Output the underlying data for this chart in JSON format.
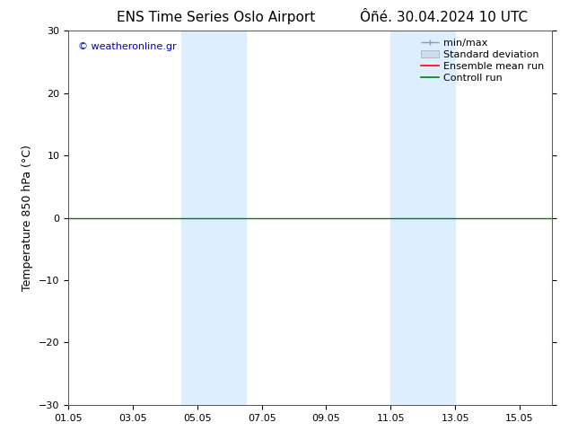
{
  "title_left": "ENS Time Series Oslo Airport",
  "title_right": "Ôñé. 30.04.2024 10 UTC",
  "ylabel": "Temperature 850 hPa (°C)",
  "ylim": [
    -30,
    30
  ],
  "yticks": [
    -30,
    -20,
    -10,
    0,
    10,
    20,
    30
  ],
  "xlim": [
    0,
    15
  ],
  "xtick_labels": [
    "01.05",
    "03.05",
    "05.05",
    "07.05",
    "09.05",
    "11.05",
    "13.05",
    "15.05"
  ],
  "xtick_positions": [
    0,
    2,
    4,
    6,
    8,
    10,
    12,
    14
  ],
  "watermark": "© weatheronline.gr",
  "watermark_color": "#0000bb",
  "bg_color": "#ffffff",
  "plot_bg_color": "#ffffff",
  "shaded_regions": [
    {
      "x_start": 3.5,
      "x_end": 5.5,
      "color": "#ddeeff"
    },
    {
      "x_start": 10.0,
      "x_end": 12.0,
      "color": "#ddeeff"
    }
  ],
  "control_run_y": 0,
  "control_run_color": "#008000",
  "ensemble_mean_color": "#ff0000",
  "minmax_color": "#999999",
  "stddev_color": "#ccddee",
  "legend_labels": [
    "min/max",
    "Standard deviation",
    "Ensemble mean run",
    "Controll run"
  ],
  "legend_colors": [
    "#999999",
    "#ccddee",
    "#ff0000",
    "#008000"
  ],
  "title_fontsize": 11,
  "axis_label_fontsize": 9,
  "tick_fontsize": 8,
  "legend_fontsize": 8,
  "watermark_fontsize": 8
}
